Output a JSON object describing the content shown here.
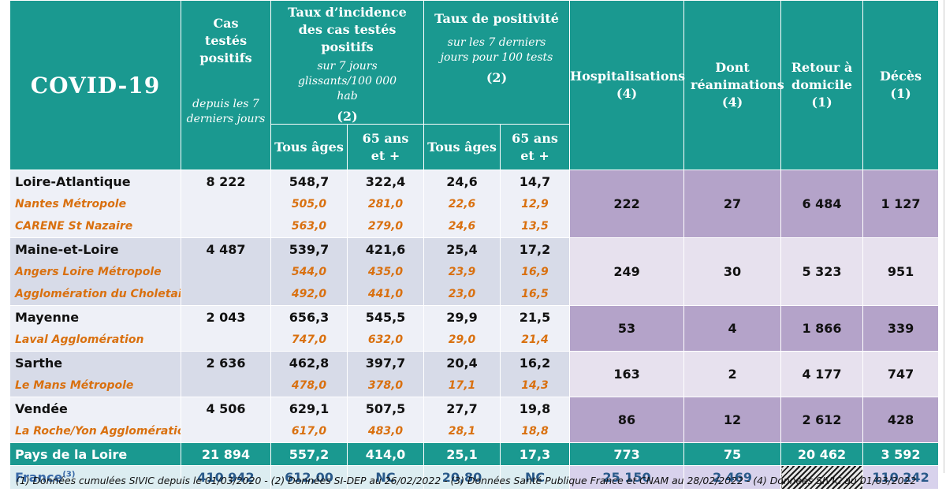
{
  "header": {
    "title": "COVID-19",
    "cas_testes": {
      "title": "Cas testés positifs",
      "sub": "depuis les 7 derniers jours"
    },
    "incidence": {
      "title": "Taux d’incidence des cas testés positifs",
      "sub": "sur 7 jours glissants/100 000 hab",
      "ref": "(2)"
    },
    "positivite": {
      "title": "Taux de positivité",
      "sub": "sur les 7 derniers jours pour 100 tests",
      "ref": "(2)"
    },
    "tous_ages": "Tous âges",
    "plus65_a": "65 ans",
    "plus65_b": "et +",
    "hosp": {
      "title": "Hospitalisations",
      "ref": "(4)"
    },
    "rea": {
      "title": "Dont réanimations",
      "ref": "(4)"
    },
    "retour": {
      "title": "Retour à domicile",
      "ref": "(1)"
    },
    "deces": {
      "title": "Décès",
      "ref": "(1)"
    }
  },
  "departements": [
    {
      "name": "Loire-Atlantique",
      "cas": "8 222",
      "inc_tous": "548,7",
      "inc_65": "322,4",
      "pos_tous": "24,6",
      "pos_65": "14,7",
      "hosp": "222",
      "rea": "27",
      "retour": "6 484",
      "deces": "1 127",
      "subs": [
        {
          "name": "Nantes Métropole",
          "inc_tous": "505,0",
          "inc_65": "281,0",
          "pos_tous": "22,6",
          "pos_65": "12,9"
        },
        {
          "name": "CARENE St Nazaire",
          "inc_tous": "563,0",
          "inc_65": "279,0",
          "pos_tous": "24,6",
          "pos_65": "13,5"
        }
      ]
    },
    {
      "name": "Maine-et-Loire",
      "cas": "4 487",
      "inc_tous": "539,7",
      "inc_65": "421,6",
      "pos_tous": "25,4",
      "pos_65": "17,2",
      "hosp": "249",
      "rea": "30",
      "retour": "5 323",
      "deces": "951",
      "subs": [
        {
          "name": "Angers Loire Métropole",
          "inc_tous": "544,0",
          "inc_65": "435,0",
          "pos_tous": "23,9",
          "pos_65": "16,9"
        },
        {
          "name": "Agglomération du Choletais",
          "inc_tous": "492,0",
          "inc_65": "441,0",
          "pos_tous": "23,0",
          "pos_65": "16,5"
        }
      ]
    },
    {
      "name": "Mayenne",
      "cas": "2 043",
      "inc_tous": "656,3",
      "inc_65": "545,5",
      "pos_tous": "29,9",
      "pos_65": "21,5",
      "hosp": "53",
      "rea": "4",
      "retour": "1 866",
      "deces": "339",
      "subs": [
        {
          "name": "Laval Agglomération",
          "inc_tous": "747,0",
          "inc_65": "632,0",
          "pos_tous": "29,0",
          "pos_65": "21,4"
        }
      ]
    },
    {
      "name": "Sarthe",
      "cas": "2 636",
      "inc_tous": "462,8",
      "inc_65": "397,7",
      "pos_tous": "20,4",
      "pos_65": "16,2",
      "hosp": "163",
      "rea": "2",
      "retour": "4 177",
      "deces": "747",
      "subs": [
        {
          "name": "Le Mans Métropole",
          "inc_tous": "478,0",
          "inc_65": "378,0",
          "pos_tous": "17,1",
          "pos_65": "14,3"
        }
      ]
    },
    {
      "name": "Vendée",
      "cas": "4 506",
      "inc_tous": "629,1",
      "inc_65": "507,5",
      "pos_tous": "27,7",
      "pos_65": "19,8",
      "hosp": "86",
      "rea": "12",
      "retour": "2 612",
      "deces": "428",
      "subs": [
        {
          "name": "La Roche/Yon Agglomération",
          "inc_tous": "617,0",
          "inc_65": "483,0",
          "pos_tous": "28,1",
          "pos_65": "18,8"
        }
      ]
    }
  ],
  "region": {
    "name": "Pays de la Loire",
    "cas": "21 894",
    "inc_tous": "557,2",
    "inc_65": "414,0",
    "pos_tous": "25,1",
    "pos_65": "17,3",
    "hosp": "773",
    "rea": "75",
    "retour": "20 462",
    "deces": "3 592"
  },
  "france": {
    "name": "France",
    "sup": "(3)",
    "cas": "410 942",
    "inc_tous": "612,00",
    "inc_65": "NC",
    "pos_tous": "20,80",
    "pos_65": "NC",
    "hosp": "25 150",
    "rea": "2 469",
    "retour": "",
    "deces": "110 242"
  },
  "footnote": "(1) Données cumulées SIVIC depuis le 01/03/2020 - (2) Données SI-DEP  au 26/02/2022 - (3) Données Santé Publique France et CNAM au 28/02/2022 - (4) Données SIVIC au 01/03/2022"
}
